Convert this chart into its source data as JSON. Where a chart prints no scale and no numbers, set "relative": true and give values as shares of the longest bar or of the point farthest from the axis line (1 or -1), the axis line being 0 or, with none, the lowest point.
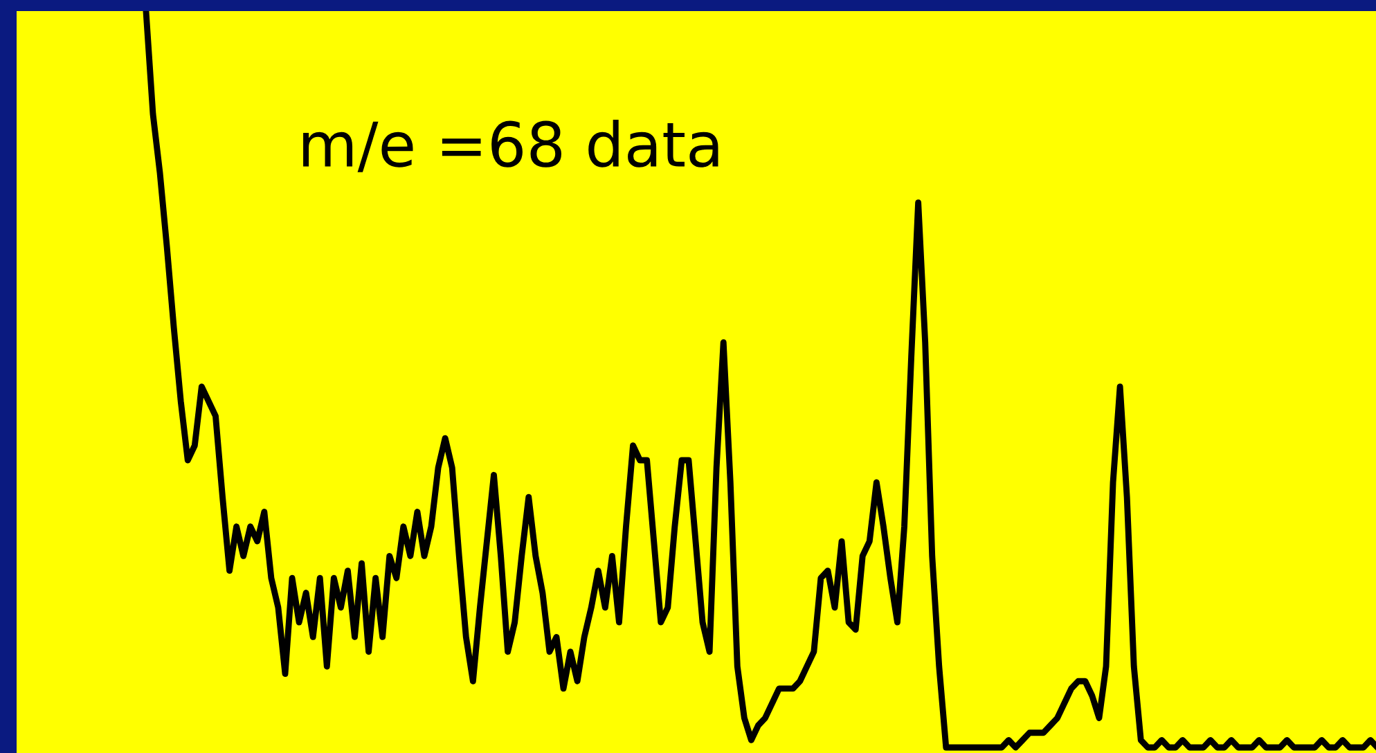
{
  "chart_data": {
    "type": "line",
    "title": "m/e =68 data",
    "relative": true,
    "categories": [
      null,
      null,
      null,
      null,
      null,
      null,
      null,
      null,
      null,
      null,
      null,
      null,
      null,
      null,
      null,
      null,
      null,
      null,
      null,
      null,
      null,
      null,
      null,
      null,
      null,
      null,
      null,
      null,
      null,
      null,
      null,
      null,
      null,
      null,
      null,
      null,
      null,
      null,
      null,
      null,
      null,
      null,
      null,
      null,
      null,
      null,
      null,
      null,
      null,
      null,
      null,
      null,
      null,
      null,
      null,
      null,
      null,
      null,
      null,
      null,
      null,
      null,
      null,
      null,
      null,
      null,
      null,
      null,
      null,
      null,
      null,
      null,
      null,
      null,
      null,
      null,
      null,
      null,
      null,
      null,
      null,
      null,
      null,
      null,
      null,
      null,
      null,
      null,
      null,
      null,
      null,
      null,
      null,
      null,
      null,
      null,
      null,
      null,
      null,
      null,
      null,
      null,
      null,
      null,
      null,
      null,
      null,
      null,
      null,
      null,
      null,
      null,
      null,
      null,
      null,
      null,
      null,
      null,
      null,
      null,
      null,
      null,
      null,
      null,
      null,
      null,
      null,
      null,
      null,
      null,
      null,
      null,
      null,
      null,
      null,
      null,
      null,
      null,
      null,
      null,
      null,
      null,
      null,
      null,
      null,
      null,
      null,
      null,
      null,
      null,
      null,
      null,
      null,
      null,
      null,
      null,
      null,
      null,
      null,
      null,
      null,
      null,
      null,
      null,
      null,
      null,
      null,
      null,
      null,
      null,
      null,
      null,
      null,
      null,
      null,
      null,
      null,
      null
    ],
    "series": [
      {
        "color": "#000000",
        "values": [
          1.0,
          0.86,
          0.78,
          0.68,
          0.57,
          0.47,
          0.39,
          0.41,
          0.49,
          0.47,
          0.45,
          0.34,
          0.24,
          0.3,
          0.26,
          0.3,
          0.28,
          0.32,
          0.23,
          0.19,
          0.1,
          0.23,
          0.17,
          0.21,
          0.15,
          0.23,
          0.11,
          0.23,
          0.19,
          0.24,
          0.15,
          0.25,
          0.13,
          0.23,
          0.15,
          0.26,
          0.23,
          0.3,
          0.26,
          0.32,
          0.26,
          0.3,
          0.38,
          0.42,
          0.38,
          0.26,
          0.15,
          0.09,
          0.19,
          0.28,
          0.37,
          0.26,
          0.13,
          0.17,
          0.26,
          0.34,
          0.26,
          0.21,
          0.13,
          0.15,
          0.08,
          0.13,
          0.09,
          0.15,
          0.19,
          0.24,
          0.19,
          0.26,
          0.17,
          0.3,
          0.41,
          0.39,
          0.39,
          0.28,
          0.17,
          0.19,
          0.3,
          0.39,
          0.39,
          0.28,
          0.17,
          0.13,
          0.38,
          0.55,
          0.36,
          0.11,
          0.04,
          0.01,
          0.03,
          0.04,
          0.06,
          0.08,
          0.08,
          0.08,
          0.09,
          0.11,
          0.13,
          0.23,
          0.24,
          0.19,
          0.28,
          0.17,
          0.16,
          0.26,
          0.28,
          0.36,
          0.3,
          0.23,
          0.17,
          0.3,
          0.53,
          0.74,
          0.55,
          0.26,
          0.11,
          0.0,
          0.0,
          0.0,
          0.0,
          0.0,
          0.0,
          0.0,
          0.0,
          0.0,
          0.01,
          0.0,
          0.01,
          0.02,
          0.02,
          0.02,
          0.03,
          0.04,
          0.06,
          0.08,
          0.09,
          0.09,
          0.07,
          0.04,
          0.11,
          0.36,
          0.49,
          0.34,
          0.11,
          0.01,
          0.0,
          0.0,
          0.01,
          0.0,
          0.0,
          0.01,
          0.0,
          0.0,
          0.0,
          0.01,
          0.0,
          0.0,
          0.01,
          0.0,
          0.0,
          0.0,
          0.01,
          0.0,
          0.0,
          0.0,
          0.01,
          0.0,
          0.0,
          0.0,
          0.0,
          0.01,
          0.0,
          0.0,
          0.01,
          0.0,
          0.0,
          0.0,
          0.01,
          0.0
        ]
      }
    ],
    "marker": "none",
    "line_style": "solid"
  }
}
